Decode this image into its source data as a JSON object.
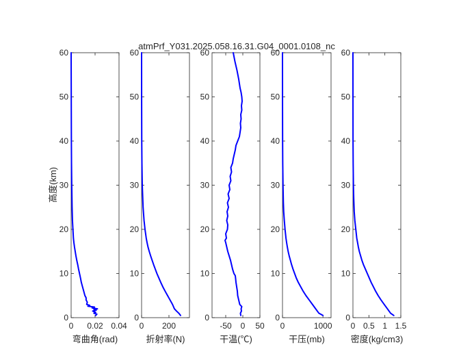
{
  "chart_data": {
    "type": "line",
    "title": "atmPrf_Y031.2025.058.16.31.G04_0001.0108_nc",
    "ylabel": "高度(km)",
    "ylim": [
      0,
      60
    ],
    "yticks": [
      0,
      10,
      20,
      30,
      40,
      50,
      60
    ],
    "line_color": "#0000ff",
    "grid": false,
    "panels": [
      {
        "id": "bending-angle",
        "xlabel": "弯曲角(rad)",
        "xlim": [
          0,
          0.04
        ],
        "xticks": [
          0,
          0.02,
          0.04
        ],
        "xtick_labels": [
          "0",
          "0.02",
          "0.04"
        ],
        "series": [
          {
            "values": [
              [
                0.0205,
                0.5
              ],
              [
                0.0215,
                0.8
              ],
              [
                0.019,
                1.0
              ],
              [
                0.0205,
                1.2
              ],
              [
                0.018,
                1.5
              ],
              [
                0.021,
                1.7
              ],
              [
                0.019,
                1.9
              ],
              [
                0.022,
                2.0
              ],
              [
                0.0175,
                2.2
              ],
              [
                0.0195,
                2.4
              ],
              [
                0.014,
                2.6
              ],
              [
                0.0155,
                2.8
              ],
              [
                0.013,
                3.0
              ],
              [
                0.0135,
                3.5
              ],
              [
                0.0125,
                4.0
              ],
              [
                0.0125,
                4.5
              ],
              [
                0.0115,
                5.0
              ],
              [
                0.0105,
                6.0
              ],
              [
                0.0095,
                7.0
              ],
              [
                0.0085,
                8.0
              ],
              [
                0.0078,
                9.0
              ],
              [
                0.007,
                10.0
              ],
              [
                0.0062,
                11.0
              ],
              [
                0.0055,
                12.0
              ],
              [
                0.0047,
                13.0
              ],
              [
                0.004,
                14.0
              ],
              [
                0.0034,
                15.0
              ],
              [
                0.0028,
                16.0
              ],
              [
                0.0023,
                17.0
              ],
              [
                0.0019,
                18.0
              ],
              [
                0.0015,
                20.0
              ],
              [
                0.0011,
                22.0
              ],
              [
                0.0008,
                25.0
              ],
              [
                0.0005,
                30.0
              ],
              [
                0.0003,
                35.0
              ],
              [
                0.0002,
                40.0
              ],
              [
                0.0001,
                50.0
              ],
              [
                0.0,
                60.0
              ]
            ]
          }
        ]
      },
      {
        "id": "refractivity",
        "xlabel": "折射率(N)",
        "xlim": [
          0,
          350
        ],
        "xticks": [
          0,
          200
        ],
        "xtick_labels": [
          "0",
          "200"
        ],
        "series": [
          {
            "values": [
              [
                285,
                0.5
              ],
              [
                272,
                1.0
              ],
              [
                255,
                1.5
              ],
              [
                240,
                2.0
              ],
              [
                226,
                3.0
              ],
              [
                208,
                4.0
              ],
              [
                190,
                5.0
              ],
              [
                172,
                6.0
              ],
              [
                155,
                7.0
              ],
              [
                140,
                8.0
              ],
              [
                126,
                9.0
              ],
              [
                112,
                10.0
              ],
              [
                100,
                11.0
              ],
              [
                88,
                12.0
              ],
              [
                77,
                13.0
              ],
              [
                66,
                14.0
              ],
              [
                56,
                15.0
              ],
              [
                47,
                16.0
              ],
              [
                40,
                17.0
              ],
              [
                34,
                18.0
              ],
              [
                25,
                20.0
              ],
              [
                18,
                22.0
              ],
              [
                11,
                25.0
              ],
              [
                5,
                30.0
              ],
              [
                2.5,
                35.0
              ],
              [
                1.2,
                40.0
              ],
              [
                0.3,
                50.0
              ],
              [
                0,
                60.0
              ]
            ]
          }
        ]
      },
      {
        "id": "temperature",
        "xlabel": "干温(℃)",
        "xlim": [
          -90,
          50
        ],
        "xticks": [
          -50,
          0,
          50
        ],
        "xtick_labels": [
          "-50",
          "0",
          "50"
        ],
        "series": [
          {
            "values": [
              [
                -6,
                0.5
              ],
              [
                -7,
                1.0
              ],
              [
                -4,
                1.5
              ],
              [
                -5,
                2.0
              ],
              [
                -3,
                2.5
              ],
              [
                -9,
                3.0
              ],
              [
                -12,
                4.0
              ],
              [
                -15,
                5.0
              ],
              [
                -16,
                6.0
              ],
              [
                -18,
                7.0
              ],
              [
                -20,
                8.0
              ],
              [
                -21,
                8.8
              ],
              [
                -22,
                9.5
              ],
              [
                -26,
                10.0
              ],
              [
                -30,
                11.0
              ],
              [
                -33,
                12.0
              ],
              [
                -36,
                13.0
              ],
              [
                -40,
                14.0
              ],
              [
                -44,
                15.0
              ],
              [
                -47,
                16.0
              ],
              [
                -50,
                17.0
              ],
              [
                -52,
                17.5
              ],
              [
                -48,
                18.0
              ],
              [
                -50,
                19.0
              ],
              [
                -45,
                20.0
              ],
              [
                -44,
                21.0
              ],
              [
                -47,
                22.0
              ],
              [
                -44,
                23.0
              ],
              [
                -46,
                24.0
              ],
              [
                -42,
                25.0
              ],
              [
                -45,
                26.0
              ],
              [
                -40,
                27.0
              ],
              [
                -43,
                28.0
              ],
              [
                -38,
                29.0
              ],
              [
                -40,
                30.0
              ],
              [
                -35,
                31.0
              ],
              [
                -37,
                32.0
              ],
              [
                -33,
                33.0
              ],
              [
                -35,
                34.0
              ],
              [
                -30,
                35.0
              ],
              [
                -28,
                36.0
              ],
              [
                -25,
                37.0
              ],
              [
                -22,
                38.0
              ],
              [
                -20,
                39.0
              ],
              [
                -15,
                40.0
              ],
              [
                -10,
                41.0
              ],
              [
                -8,
                42.0
              ],
              [
                -6,
                43.0
              ],
              [
                -7,
                44.0
              ],
              [
                -5,
                45.0
              ],
              [
                -6,
                46.0
              ],
              [
                -3,
                47.0
              ],
              [
                -4,
                48.0
              ],
              [
                -2,
                49.0
              ],
              [
                -3,
                50.0
              ],
              [
                -5,
                51.0
              ],
              [
                -8,
                52.0
              ],
              [
                -12,
                54.0
              ],
              [
                -17,
                56.0
              ],
              [
                -23,
                58.0
              ],
              [
                -28,
                60.0
              ]
            ]
          }
        ]
      },
      {
        "id": "pressure",
        "xlabel": "干压(mb)",
        "xlim": [
          0,
          1200
        ],
        "xticks": [
          0,
          1000
        ],
        "xtick_labels": [
          "0",
          "1000"
        ],
        "series": [
          {
            "values": [
              [
                1000,
                0.5
              ],
              [
                900,
                1.0
              ],
              [
                820,
                2.0
              ],
              [
                740,
                3.0
              ],
              [
                660,
                4.0
              ],
              [
                580,
                5.0
              ],
              [
                510,
                6.0
              ],
              [
                450,
                7.0
              ],
              [
                390,
                8.0
              ],
              [
                340,
                9.0
              ],
              [
                300,
                10.0
              ],
              [
                260,
                11.0
              ],
              [
                225,
                12.0
              ],
              [
                195,
                13.0
              ],
              [
                165,
                14.0
              ],
              [
                140,
                15.0
              ],
              [
                120,
                16.0
              ],
              [
                102,
                17.0
              ],
              [
                86,
                18.0
              ],
              [
                63,
                20.0
              ],
              [
                45,
                22.0
              ],
              [
                30,
                24.0
              ],
              [
                22,
                26.0
              ],
              [
                13,
                30.0
              ],
              [
                6,
                35.0
              ],
              [
                3,
                40.0
              ],
              [
                1,
                48.0
              ],
              [
                0.3,
                55.0
              ],
              [
                0,
                60.0
              ]
            ]
          }
        ]
      },
      {
        "id": "density",
        "xlabel": "密度(kg/cm3)",
        "xlim": [
          0,
          1.5
        ],
        "xticks": [
          0,
          0.5,
          1,
          1.5
        ],
        "xtick_labels": [
          "0",
          "0.5",
          "1",
          "1.5"
        ],
        "series": [
          {
            "values": [
              [
                1.28,
                0.5
              ],
              [
                1.18,
                1.0
              ],
              [
                1.08,
                2.0
              ],
              [
                0.98,
                3.0
              ],
              [
                0.88,
                4.0
              ],
              [
                0.79,
                5.0
              ],
              [
                0.71,
                6.0
              ],
              [
                0.64,
                7.0
              ],
              [
                0.57,
                8.0
              ],
              [
                0.51,
                9.0
              ],
              [
                0.45,
                10.0
              ],
              [
                0.39,
                11.0
              ],
              [
                0.33,
                12.0
              ],
              [
                0.28,
                13.0
              ],
              [
                0.24,
                14.0
              ],
              [
                0.2,
                15.0
              ],
              [
                0.17,
                16.0
              ],
              [
                0.145,
                17.0
              ],
              [
                0.12,
                18.0
              ],
              [
                0.09,
                20.0
              ],
              [
                0.06,
                22.0
              ],
              [
                0.04,
                24.0
              ],
              [
                0.025,
                27.0
              ],
              [
                0.015,
                30.0
              ],
              [
                0.007,
                35.0
              ],
              [
                0.003,
                40.0
              ],
              [
                0.001,
                50.0
              ],
              [
                0,
                60.0
              ]
            ]
          }
        ]
      }
    ]
  }
}
